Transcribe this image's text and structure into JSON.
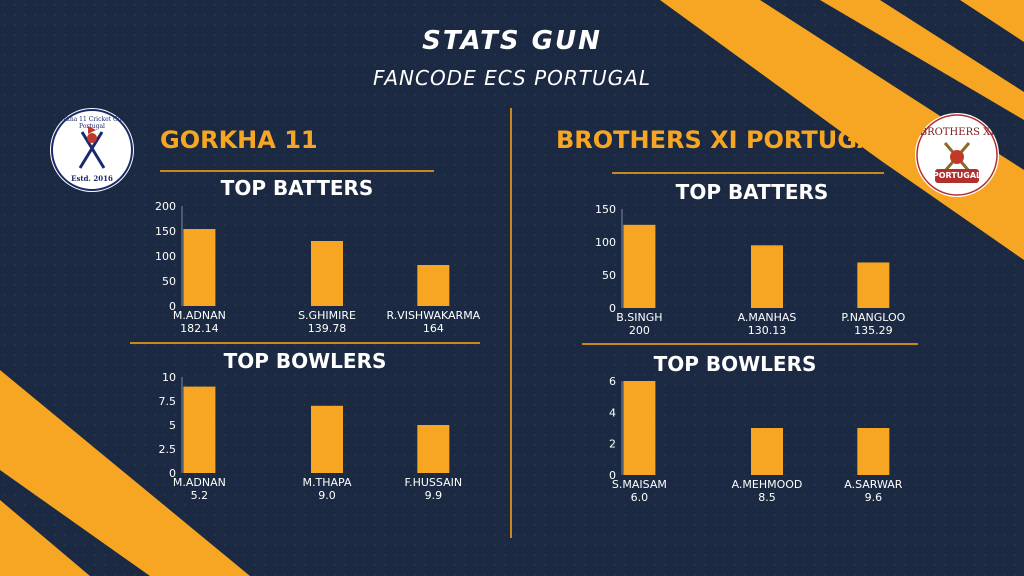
{
  "header": {
    "title": "STATS GUN",
    "subtitle": "FANCODE ECS PORTUGAL"
  },
  "colors": {
    "accent": "#f6a623",
    "bar": "#f6a623",
    "background": "#1b2a42",
    "rule": "#c8891c"
  },
  "left_team": {
    "name": "GORKHA 11",
    "logo": {
      "ring_text": "Gorkha 11 Cricket Club, Portugal",
      "estd": "Estd. 2016"
    },
    "batters_title": "TOP BATTERS",
    "bowlers_title": "TOP BOWLERS"
  },
  "right_team": {
    "name": "BROTHERS XI PORTUGAL",
    "logo": {
      "arc_text": "BROTHERS XI",
      "banner_text": "PORTUGAL"
    },
    "batters_title": "TOP BATTERS",
    "bowlers_title": "TOP BOWLERS"
  },
  "chart_data": [
    {
      "type": "bar",
      "title": "TOP BATTERS",
      "categories": [
        "M.ADNAN",
        "S.GHIMIRE",
        "R.VISHWAKARMA"
      ],
      "sublabels": [
        "182.14",
        "139.78",
        "164"
      ],
      "values": [
        154,
        130,
        82
      ],
      "yticks": [
        0,
        50,
        100,
        150,
        200
      ],
      "ylim": [
        0,
        200
      ],
      "grid": false
    },
    {
      "type": "bar",
      "title": "TOP BOWLERS",
      "categories": [
        "M.ADNAN",
        "M.THAPA",
        "F.HUSSAIN"
      ],
      "sublabels": [
        "5.2",
        "9.0",
        "9.9"
      ],
      "values": [
        9,
        7,
        5
      ],
      "yticks": [
        0,
        2.5,
        5,
        7.5,
        10
      ],
      "ylim": [
        0,
        10
      ],
      "grid": false
    },
    {
      "type": "bar",
      "title": "TOP BATTERS",
      "categories": [
        "B.SINGH",
        "A.MANHAS",
        "P.NANGLOO"
      ],
      "sublabels": [
        "200",
        "130.13",
        "135.29"
      ],
      "values": [
        126,
        95,
        69
      ],
      "yticks": [
        0,
        50,
        100,
        150
      ],
      "ylim": [
        0,
        150
      ],
      "grid": false
    },
    {
      "type": "bar",
      "title": "TOP BOWLERS",
      "categories": [
        "S.MAISAM",
        "A.MEHMOOD",
        "A.SARWAR"
      ],
      "sublabels": [
        "6.0",
        "8.5",
        "9.6"
      ],
      "values": [
        6,
        3,
        3
      ],
      "yticks": [
        0,
        2,
        4,
        6
      ],
      "ylim": [
        0,
        6
      ],
      "grid": false
    }
  ]
}
